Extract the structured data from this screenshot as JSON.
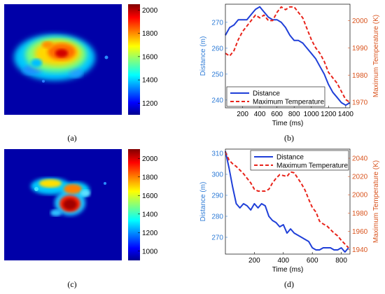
{
  "panels": {
    "a": {
      "caption": "(a)",
      "colorbar": {
        "min": 1100,
        "max": 2050,
        "ticks": [
          1200,
          1400,
          1600,
          1800,
          2000
        ]
      }
    },
    "b": {
      "caption": "(b)"
    },
    "c": {
      "caption": "(c)",
      "colorbar": {
        "min": 900,
        "max": 2100,
        "ticks": [
          1000,
          1200,
          1400,
          1600,
          1800,
          2000
        ]
      }
    },
    "d": {
      "caption": "(d)"
    }
  },
  "colors": {
    "distance": "#1f3fd8",
    "temperature": "#e8231a",
    "left_axis": "#2e7bd6",
    "right_axis": "#d9541e",
    "heat_bg": "#0000a8"
  },
  "chart_data": [
    {
      "id": "b",
      "type": "line",
      "xlabel": "Time (ms)",
      "ylabel": "Distance (m)",
      "ylabel_right": "Maximum Temperature (K)",
      "xlim": [
        0,
        1450
      ],
      "xticks": [
        200,
        400,
        600,
        800,
        1000,
        1200,
        1400
      ],
      "ylim": [
        237,
        277
      ],
      "yticks": [
        240,
        250,
        260,
        270
      ],
      "ylim_right": [
        1968,
        2006
      ],
      "yticks_right": [
        1970,
        1980,
        1990,
        2000
      ],
      "legend_position": "bottom-left",
      "series": [
        {
          "name": "Distance",
          "axis": "left",
          "style": "solid",
          "x": [
            0,
            50,
            100,
            150,
            200,
            250,
            300,
            350,
            400,
            450,
            500,
            550,
            600,
            650,
            700,
            750,
            800,
            850,
            900,
            950,
            1000,
            1050,
            1100,
            1150,
            1200,
            1250,
            1300,
            1350,
            1400,
            1450
          ],
          "y": [
            265,
            268,
            269,
            271,
            271,
            271,
            273,
            275,
            276,
            274,
            272,
            271,
            271,
            270,
            268,
            265,
            263,
            263,
            262,
            260,
            258,
            256,
            253,
            250,
            246,
            243,
            241,
            239,
            238,
            239
          ]
        },
        {
          "name": "Maximum Temperature",
          "axis": "right",
          "style": "dashed",
          "x": [
            0,
            50,
            100,
            150,
            200,
            250,
            300,
            350,
            400,
            450,
            500,
            550,
            600,
            650,
            700,
            750,
            800,
            850,
            900,
            950,
            1000,
            1050,
            1100,
            1150,
            1200,
            1250,
            1300,
            1350,
            1400,
            1450
          ],
          "y": [
            1988,
            1987,
            1989,
            1993,
            1996,
            1998,
            2000,
            2002,
            2001,
            2002,
            2000,
            2000,
            2003,
            2005,
            2004,
            2005,
            2005,
            2003,
            2001,
            1997,
            1993,
            1990,
            1988,
            1985,
            1981,
            1979,
            1977,
            1974,
            1971,
            1970
          ]
        }
      ]
    },
    {
      "id": "d",
      "type": "line",
      "xlabel": "Time (ms)",
      "ylabel": "Distance (m)",
      "ylabel_right": "Maximum Temperature (K)",
      "xlim": [
        0,
        860
      ],
      "xticks": [
        200,
        400,
        600,
        800
      ],
      "ylim": [
        262,
        312
      ],
      "yticks": [
        270,
        280,
        290,
        300,
        310
      ],
      "ylim_right": [
        1935,
        2050
      ],
      "yticks_right": [
        1940,
        1960,
        1980,
        2000,
        2020,
        2040
      ],
      "legend_position": "top-right",
      "series": [
        {
          "name": "Distance",
          "axis": "left",
          "style": "solid",
          "x": [
            0,
            25,
            50,
            75,
            100,
            125,
            150,
            175,
            200,
            225,
            250,
            275,
            300,
            325,
            350,
            375,
            400,
            425,
            450,
            475,
            500,
            525,
            550,
            575,
            600,
            625,
            650,
            675,
            700,
            725,
            750,
            775,
            800,
            825,
            850
          ],
          "y": [
            311,
            303,
            294,
            286,
            284,
            286,
            285,
            283,
            286,
            284,
            286,
            285,
            280,
            278,
            277,
            275,
            276,
            272,
            274,
            272,
            271,
            270,
            269,
            268,
            265,
            264,
            264,
            265,
            265,
            265,
            264,
            264,
            265,
            263,
            265
          ]
        },
        {
          "name": "Maximum Temperature",
          "axis": "right",
          "style": "dashed",
          "x": [
            0,
            25,
            50,
            75,
            100,
            125,
            150,
            175,
            200,
            225,
            250,
            275,
            300,
            325,
            350,
            375,
            400,
            425,
            450,
            475,
            500,
            525,
            550,
            575,
            600,
            625,
            650,
            675,
            700,
            725,
            750,
            775,
            800,
            825,
            850
          ],
          "y": [
            2047,
            2038,
            2034,
            2031,
            2027,
            2023,
            2018,
            2013,
            2006,
            2004,
            2004,
            2004,
            2006,
            2013,
            2018,
            2022,
            2021,
            2020,
            2025,
            2024,
            2018,
            2012,
            2005,
            1995,
            1986,
            1981,
            1971,
            1968,
            1966,
            1962,
            1958,
            1955,
            1950,
            1946,
            1942
          ]
        }
      ]
    }
  ]
}
